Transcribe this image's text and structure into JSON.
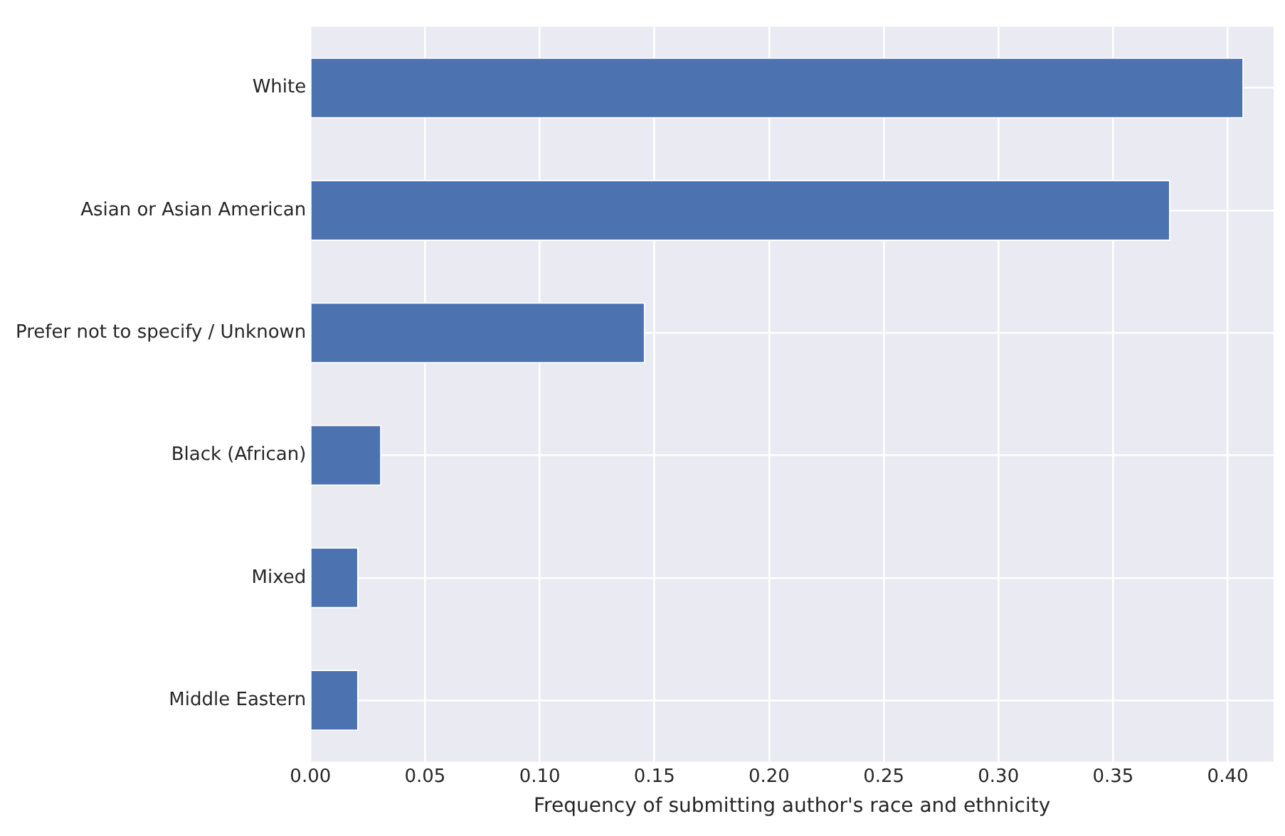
{
  "chart_data": {
    "type": "bar",
    "orientation": "horizontal",
    "xlabel": "Frequency of submitting author's race and ethnicity",
    "categories": [
      "White",
      "Asian or Asian American",
      "Prefer not to specify / Unknown",
      "Black (African)",
      "Mixed",
      "Middle Eastern"
    ],
    "values": [
      0.407,
      0.375,
      0.146,
      0.031,
      0.021,
      0.021
    ],
    "color": "#4c72b0",
    "xlim": [
      0,
      0.42
    ],
    "xticks": [
      {
        "value": 0,
        "label": "0.00"
      },
      {
        "value": 0.05,
        "label": "0.05"
      },
      {
        "value": 0.1,
        "label": "0.10"
      },
      {
        "value": 0.15,
        "label": "0.15"
      },
      {
        "value": 0.2,
        "label": "0.20"
      },
      {
        "value": 0.25,
        "label": "0.25"
      },
      {
        "value": 0.3,
        "label": "0.30"
      },
      {
        "value": 0.35,
        "label": "0.35"
      },
      {
        "value": 0.4,
        "label": "0.40"
      }
    ],
    "grid": true,
    "legend": false
  }
}
